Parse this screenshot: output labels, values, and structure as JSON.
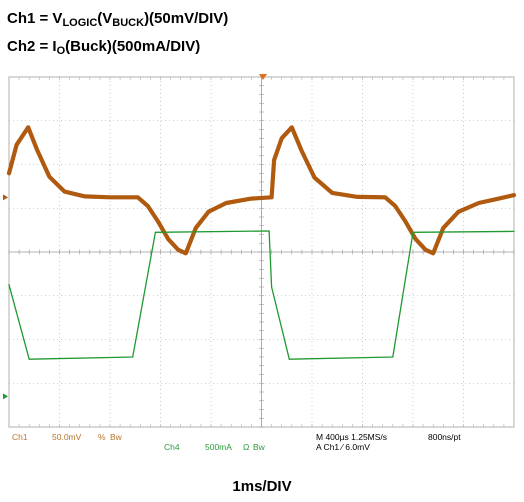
{
  "header": {
    "line1": {
      "prefix": "Ch1 = V",
      "sub1": "LOGIC",
      "mid": "(V",
      "sub2": "BUCK",
      "suffix": ")(50mV/DIV)"
    },
    "line2": {
      "prefix": "Ch2 = I",
      "sub1": "O",
      "suffix": "(Buck)(500mA/DIV)"
    }
  },
  "footer_label": "1ms/DIV",
  "status": {
    "ch1_label": "Ch1",
    "ch1_scale": "50.0mV",
    "ch1_coupling": "%",
    "ch1_bw": "Bw",
    "ch4_label": "Ch4",
    "ch4_scale": "500mA",
    "ch4_coupling": "Ω",
    "ch4_bw": "Bw",
    "timebase": "M 400µs 1.25MS/s",
    "point_spacing": "800ns/pt",
    "trigger": "A  Ch1  ⁄  6.0mV"
  },
  "colors": {
    "ch1": "#b05a10",
    "ch4": "#1f9a30",
    "status_ch1": "#b8742a",
    "status_ch4": "#2a9a3a",
    "grid": "#a8a8a8",
    "trigger_marker": "#e07020"
  },
  "chart_data": {
    "type": "line",
    "title": "",
    "xlabel": "1ms/DIV",
    "ylabel": "",
    "grid": true,
    "x_unit": "div",
    "y_unit": "div",
    "xlim": [
      0,
      10
    ],
    "ylim": [
      -4,
      4
    ],
    "series": [
      {
        "name": "Ch1",
        "color": "#b05a10",
        "points": [
          [
            0.0,
            1.8
          ],
          [
            0.15,
            2.45
          ],
          [
            0.38,
            2.85
          ],
          [
            0.55,
            2.35
          ],
          [
            0.8,
            1.72
          ],
          [
            1.1,
            1.38
          ],
          [
            1.5,
            1.27
          ],
          [
            2.0,
            1.25
          ],
          [
            2.55,
            1.25
          ],
          [
            2.75,
            1.05
          ],
          [
            2.95,
            0.7
          ],
          [
            3.15,
            0.3
          ],
          [
            3.35,
            0.05
          ],
          [
            3.5,
            -0.03
          ],
          [
            3.7,
            0.55
          ],
          [
            3.95,
            0.92
          ],
          [
            4.3,
            1.12
          ],
          [
            4.8,
            1.22
          ],
          [
            5.2,
            1.25
          ],
          [
            5.25,
            2.1
          ],
          [
            5.4,
            2.6
          ],
          [
            5.6,
            2.85
          ],
          [
            5.8,
            2.3
          ],
          [
            6.05,
            1.7
          ],
          [
            6.4,
            1.35
          ],
          [
            6.9,
            1.26
          ],
          [
            7.45,
            1.25
          ],
          [
            7.65,
            1.05
          ],
          [
            7.85,
            0.7
          ],
          [
            8.05,
            0.3
          ],
          [
            8.25,
            0.05
          ],
          [
            8.4,
            -0.03
          ],
          [
            8.6,
            0.55
          ],
          [
            8.9,
            0.92
          ],
          [
            9.3,
            1.12
          ],
          [
            9.7,
            1.22
          ],
          [
            10.0,
            1.3
          ]
        ]
      },
      {
        "name": "Ch4",
        "color": "#1f9a30",
        "points": [
          [
            0.0,
            -0.75
          ],
          [
            0.4,
            -2.45
          ],
          [
            2.45,
            -2.4
          ],
          [
            2.9,
            0.45
          ],
          [
            5.15,
            0.48
          ],
          [
            5.2,
            -0.8
          ],
          [
            5.55,
            -2.45
          ],
          [
            7.6,
            -2.4
          ],
          [
            8.0,
            0.45
          ],
          [
            10.0,
            0.47
          ]
        ]
      }
    ]
  }
}
